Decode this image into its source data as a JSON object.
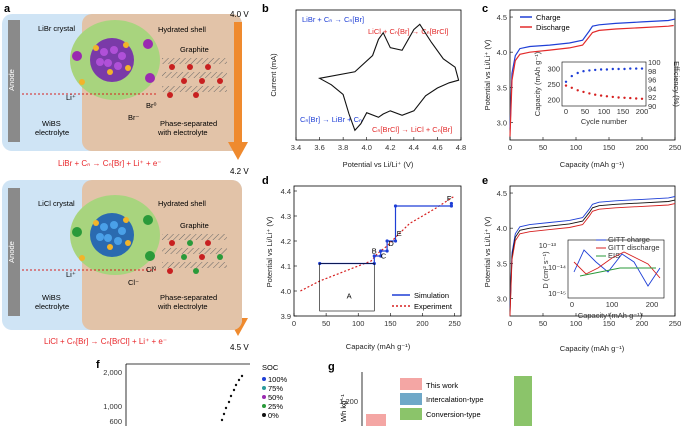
{
  "panel_a": {
    "label": "a",
    "top": {
      "anode": "Anode",
      "crystal": "LiBr crystal",
      "shell": "Hydrated shell",
      "graphite": "Graphite",
      "li_ion": "Li⁺",
      "halogen0": "Br⁰",
      "halide": "Br⁻",
      "phase": "Phase-separated\nwith electrolyte",
      "electrolyte": "WiBS\nelectrolyte",
      "voltage": "4.0 V",
      "reaction": "LiBr + Cₙ → Cₙ[Br] + Li⁺ + e⁻"
    },
    "bottom": {
      "anode": "Anode",
      "crystal": "LiCl crystal",
      "shell": "Hydrated shell",
      "graphite": "Graphite",
      "li_ion": "Li⁺",
      "halogen0": "Cl⁰",
      "halide": "Cl⁻",
      "phase": "Phase-separated\nwith electrolyte",
      "electrolyte": "WiBS\nelectrolyte",
      "voltage": "4.5 V",
      "reaction": "LiCl + Cₙ[Br] → Cₙ[BrCl] + Li⁺ + e⁻"
    },
    "mid_voltage": "4.2 V",
    "colors": {
      "electrolyte": "#cfe4f5",
      "shell": "#e2c3a8",
      "arrow": "#ef8a2e",
      "reaction": "#e8262a"
    }
  },
  "panel_b": {
    "label": "b",
    "annotations": {
      "top_left": "LiBr + Cₙ → Cₙ[Br]",
      "top_right": "LiCl + Cₙ[Br] → Cₙ[BrCl]",
      "bottom_left": "Cₙ[Br] → LiBr + Cₙ",
      "bottom_right": "Cₙ[BrCl] → LiCl + Cₙ[Br]"
    },
    "chart_data": {
      "type": "line",
      "title": "",
      "xlabel": "Potential vs Li/Li⁺ (V)",
      "ylabel": "Current (mA)",
      "xlim": [
        3.4,
        4.8
      ],
      "xticks": [
        "3.4",
        "3.6",
        "3.8",
        "4.0",
        "4.2",
        "4.4",
        "4.6",
        "4.8"
      ],
      "ylim": [
        -1,
        1
      ],
      "series": [
        {
          "name": "CV",
          "x": [
            3.6,
            3.9,
            4.05,
            4.1,
            4.14,
            4.2,
            4.3,
            4.4,
            4.45,
            4.55,
            4.65,
            4.75,
            4.78,
            4.7,
            4.6,
            4.5,
            4.4,
            4.3,
            4.2,
            4.14,
            4.1,
            4.0,
            3.95,
            3.9,
            3.85,
            3.8,
            3.7,
            3.6
          ],
          "y": [
            -0.05,
            0.05,
            0.3,
            0.55,
            0.65,
            0.42,
            0.38,
            0.7,
            0.78,
            0.5,
            0.25,
            0.12,
            -0.08,
            -0.12,
            -0.2,
            -0.32,
            -0.55,
            -0.62,
            -0.55,
            -0.6,
            -0.65,
            -0.58,
            -0.75,
            -0.85,
            -0.6,
            -0.3,
            -0.15,
            -0.05
          ]
        }
      ]
    }
  },
  "panel_c": {
    "label": "c",
    "chart_data": {
      "type": "line",
      "xlabel": "Capacity (mAh g⁻¹)",
      "ylabel": "Potential vs Li/Li⁺ (V)",
      "xlim": [
        0,
        250
      ],
      "ylim": [
        2.75,
        4.6
      ],
      "xticks": [
        "0",
        "50",
        "100",
        "150",
        "200",
        "250"
      ],
      "yticks": [
        "3.0",
        "3.5",
        "4.0",
        "4.5"
      ],
      "legend": [
        "Charge",
        "Discharge"
      ],
      "series": [
        {
          "name": "Charge",
          "color": "#1f3fd6",
          "x": [
            0,
            3,
            8,
            15,
            30,
            60,
            90,
            110,
            120,
            125,
            135,
            160,
            200,
            240,
            250
          ],
          "y": [
            2.9,
            3.7,
            3.95,
            4.05,
            4.08,
            4.1,
            4.13,
            4.17,
            4.3,
            4.37,
            4.39,
            4.41,
            4.43,
            4.45,
            4.47
          ]
        },
        {
          "name": "Discharge",
          "color": "#e22a2a",
          "x": [
            0,
            3,
            8,
            15,
            30,
            60,
            90,
            110,
            120,
            125,
            135,
            160,
            200,
            240,
            248
          ],
          "y": [
            2.8,
            3.6,
            3.88,
            3.97,
            4.0,
            4.03,
            4.06,
            4.1,
            4.22,
            4.28,
            4.31,
            4.33,
            4.35,
            4.37,
            4.38
          ]
        }
      ],
      "inset": {
        "xlabel": "Cycle number",
        "ylabel_left": "Capacity (mAh g⁻¹)",
        "ylabel_right": "Efficiency (%)",
        "xticks": [
          "0",
          "50",
          "100",
          "150",
          "200"
        ],
        "yticks_left": [
          "200",
          "250",
          "300"
        ],
        "yticks_right": [
          "90",
          "92",
          "94",
          "96",
          "98",
          "100"
        ],
        "capacity": [
          245,
          238,
          230,
          225,
          220,
          216,
          213,
          211,
          209,
          207,
          206,
          205,
          204,
          203
        ],
        "efficiency": [
          95.5,
          96.8,
          97.5,
          97.9,
          98.1,
          98.2,
          98.3,
          98.3,
          98.4,
          98.4,
          98.4,
          98.5,
          98.5,
          98.5
        ]
      }
    }
  },
  "panel_d": {
    "label": "d",
    "chart_data": {
      "type": "line",
      "xlabel": "Capacity (mAh g⁻¹)",
      "ylabel": "Potential vs Li/Li⁺ (V)",
      "xlim": [
        0,
        260
      ],
      "ylim": [
        3.9,
        4.42
      ],
      "xticks": [
        "0",
        "50",
        "100",
        "150",
        "200",
        "250"
      ],
      "yticks": [
        "3.9",
        "4.0",
        "4.1",
        "4.2",
        "4.3",
        "4.4"
      ],
      "legend": [
        "Simulation",
        "Experiment"
      ],
      "segment_labels": [
        "A",
        "B",
        "C",
        "D",
        "E",
        "F"
      ],
      "series": [
        {
          "name": "Simulation",
          "color": "#1f3fd6",
          "x": [
            40,
            125,
            125,
            135,
            135,
            145,
            145,
            158,
            158,
            245,
            245
          ],
          "y": [
            4.11,
            4.11,
            4.14,
            4.14,
            4.16,
            4.16,
            4.2,
            4.2,
            4.34,
            4.34,
            4.35
          ]
        },
        {
          "name": "Experiment",
          "color": "#d62020",
          "x": [
            10,
            40,
            70,
            100,
            120,
            130,
            145,
            160,
            180,
            200,
            220,
            250
          ],
          "y": [
            4.0,
            4.04,
            4.07,
            4.1,
            4.12,
            4.15,
            4.18,
            4.22,
            4.27,
            4.3,
            4.33,
            4.38
          ]
        }
      ]
    }
  },
  "panel_e": {
    "label": "e",
    "chart_data": {
      "type": "line",
      "xlabel": "Capacity (mAh g⁻¹)",
      "ylabel": "Potential vs Li/Li⁺ (V)",
      "xlim": [
        0,
        250
      ],
      "ylim": [
        2.75,
        4.6
      ],
      "xticks": [
        "0",
        "50",
        "100",
        "150",
        "200",
        "250"
      ],
      "yticks": [
        "3.0",
        "3.5",
        "4.0",
        "4.5"
      ],
      "inset": {
        "xlabel": "Capacity (mAh g⁻¹)",
        "ylabel": "D (cm² s⁻¹)",
        "xticks": [
          "0",
          "100",
          "200"
        ],
        "yticks": [
          "10⁻¹³",
          "10⁻¹⁴",
          "10⁻¹⁵"
        ],
        "legend": [
          "GITT charge",
          "GITT discharge",
          "EIS"
        ]
      },
      "series": [
        {
          "name": "GITT charge",
          "color": "#1f3fd6"
        },
        {
          "name": "GITT discharge",
          "color": "#d62020"
        },
        {
          "name": "EIS",
          "color": "#2a9a3a"
        }
      ]
    }
  },
  "panel_f": {
    "label": "f",
    "legend_title": "SOC",
    "legend": [
      "100%",
      "75%",
      "50%",
      "25%",
      "0%"
    ],
    "legend_colors": [
      "#1f3fd6",
      "#2a9a9a",
      "#9a2ab0",
      "#2a9a3a",
      "#111111"
    ],
    "yticks": [
      "2,000",
      "1,000",
      "600"
    ]
  },
  "panel_g": {
    "label": "g",
    "ylabel": "Wh kg⁻¹",
    "ytick": "1,200",
    "legend": [
      "This work",
      "Intercalation-type",
      "Conversion-type"
    ],
    "legend_colors": [
      "#f4a6a4",
      "#6fa8c8",
      "#8bc46a"
    ]
  }
}
